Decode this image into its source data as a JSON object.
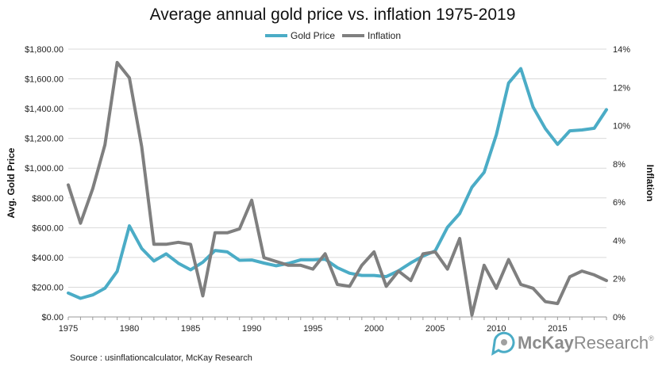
{
  "chart_data": {
    "type": "line",
    "title": "Average annual gold price vs. inflation 1975-2019",
    "ylabel_left": "Avg. Gold Price",
    "ylabel_right": "Inflation",
    "ylim_left": [
      0,
      1800
    ],
    "ylim_right": [
      0,
      14
    ],
    "xlim": [
      1975,
      2019
    ],
    "x_ticks": [
      1975,
      1980,
      1985,
      1990,
      1995,
      2000,
      2005,
      2010,
      2015
    ],
    "y_left_ticks": [
      "$0.00",
      "$200.00",
      "$400.00",
      "$600.00",
      "$800.00",
      "$1,000.00",
      "$1,200.00",
      "$1,400.00",
      "$1,600.00",
      "$1,800.00"
    ],
    "y_right_ticks": [
      "0%",
      "2%",
      "4%",
      "6%",
      "8%",
      "10%",
      "12%",
      "14%"
    ],
    "legend_position": "top-center",
    "grid": true,
    "x": [
      1975,
      1976,
      1977,
      1978,
      1979,
      1980,
      1981,
      1982,
      1983,
      1984,
      1985,
      1986,
      1987,
      1988,
      1989,
      1990,
      1991,
      1992,
      1993,
      1994,
      1995,
      1996,
      1997,
      1998,
      1999,
      2000,
      2001,
      2002,
      2003,
      2004,
      2005,
      2006,
      2007,
      2008,
      2009,
      2010,
      2011,
      2012,
      2013,
      2014,
      2015,
      2016,
      2017,
      2018,
      2019
    ],
    "series": [
      {
        "name": "Gold Price",
        "axis": "left",
        "color": "#4bacc6",
        "values": [
          161,
          125,
          148,
          193,
          307,
          612,
          460,
          376,
          424,
          361,
          317,
          368,
          447,
          437,
          381,
          383,
          362,
          344,
          360,
          384,
          384,
          388,
          331,
          294,
          279,
          279,
          271,
          310,
          363,
          409,
          444,
          603,
          695,
          872,
          972,
          1225,
          1572,
          1669,
          1411,
          1266,
          1160,
          1251,
          1257,
          1268,
          1393
        ]
      },
      {
        "name": "Inflation",
        "axis": "right",
        "color": "#7f7f7f",
        "values": [
          6.9,
          4.9,
          6.7,
          9.0,
          13.3,
          12.5,
          8.9,
          3.8,
          3.8,
          3.9,
          3.8,
          1.1,
          4.4,
          4.4,
          4.6,
          6.1,
          3.1,
          2.9,
          2.7,
          2.7,
          2.5,
          3.3,
          1.7,
          1.6,
          2.7,
          3.4,
          1.6,
          2.4,
          1.9,
          3.3,
          3.4,
          2.5,
          4.1,
          0.1,
          2.7,
          1.5,
          3.0,
          1.7,
          1.5,
          0.8,
          0.7,
          2.1,
          2.4,
          2.2,
          1.9
        ]
      }
    ],
    "source": "Source : usinflationcalculator, McKay Research"
  },
  "brand": {
    "name_part1": "McKay",
    "name_part2": "Research",
    "trademark": "®"
  }
}
